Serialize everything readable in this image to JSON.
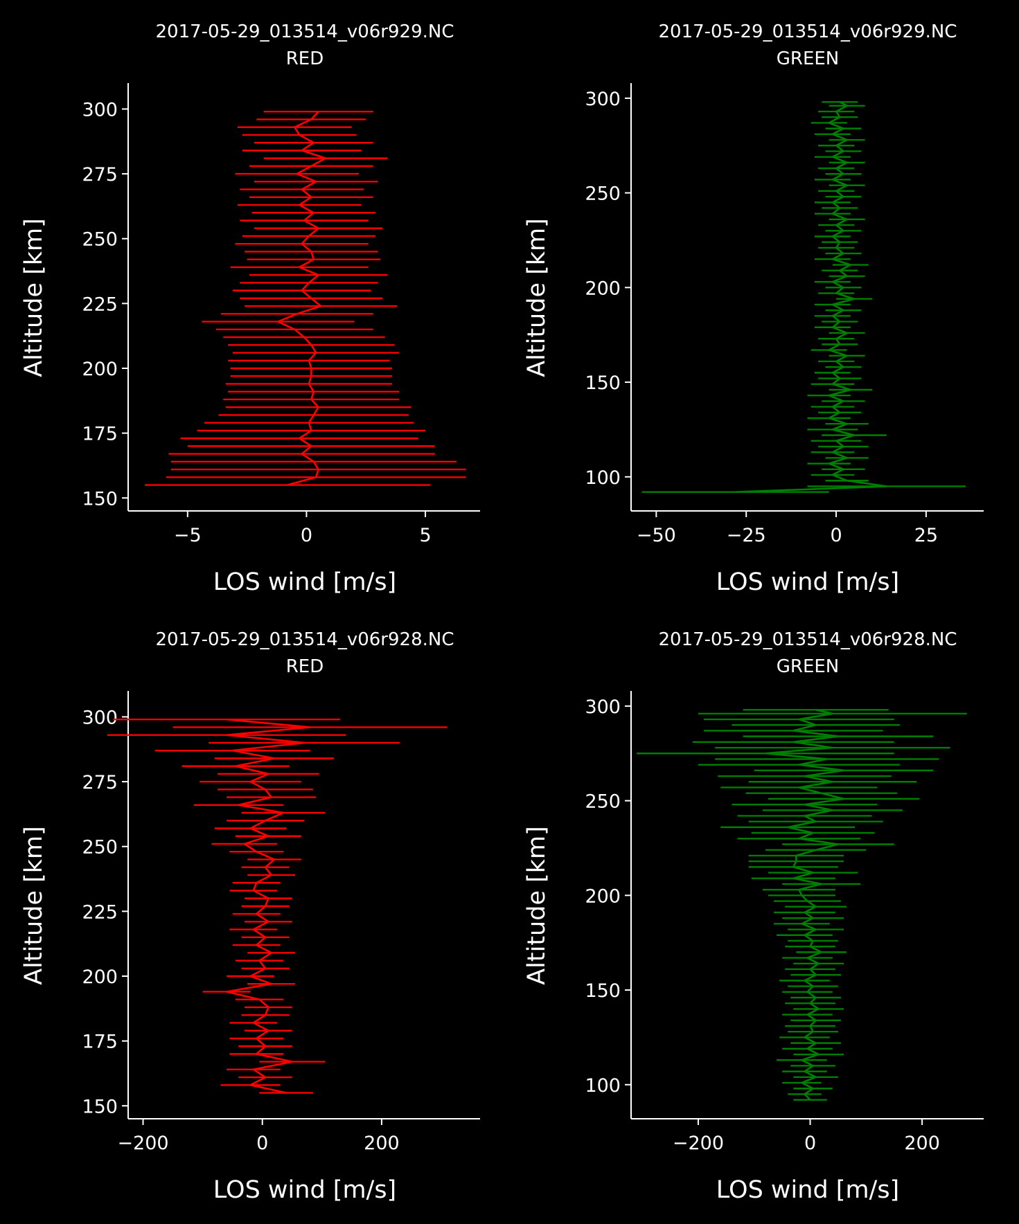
{
  "chart_data": [
    {
      "type": "errorbar",
      "title": "2017-05-29_013514_v06r929.NC",
      "subtitle": "RED",
      "xlabel": "LOS wind [m/s]",
      "ylabel": "Altitude [km]",
      "xlim": [
        -7.5,
        7.3
      ],
      "ylim": [
        145,
        310
      ],
      "xticks": [
        -5,
        0,
        5
      ],
      "yticks": [
        150,
        175,
        200,
        225,
        250,
        275,
        300
      ],
      "xtick_labels": [
        "−5",
        "0",
        "5"
      ],
      "ytick_labels": [
        "150",
        "175",
        "200",
        "225",
        "250",
        "275",
        "300"
      ],
      "color": "#ff0000",
      "series": [
        {
          "altitude": [
            155,
            158,
            161,
            164,
            167,
            170,
            173,
            176,
            179,
            182,
            185,
            188,
            191,
            194,
            197,
            200,
            203,
            206,
            209,
            212,
            215,
            218,
            221,
            224,
            227,
            230,
            233,
            236,
            239,
            242,
            245,
            248,
            251,
            254,
            257,
            260,
            263,
            266,
            269,
            272,
            275,
            278,
            281,
            284,
            287,
            290,
            293,
            296,
            299
          ],
          "wind": [
            -0.8,
            0.4,
            0.5,
            0.3,
            -0.2,
            0.2,
            -0.3,
            0.2,
            0.1,
            0.3,
            0.5,
            0.2,
            0.3,
            0.1,
            0.2,
            0.2,
            0.1,
            0.4,
            0.2,
            -0.1,
            -0.5,
            -1.2,
            -0.4,
            0.6,
            0.2,
            -0.2,
            0.1,
            0.5,
            -0.3,
            0.3,
            0.2,
            -0.2,
            0.1,
            0.5,
            -0.1,
            0.3,
            -0.3,
            0.2,
            -0.2,
            0.4,
            -0.4,
            0.2,
            0.8,
            -0.2,
            0.3,
            -0.3,
            -0.5,
            0.2,
            0.5
          ],
          "error": [
            6.0,
            6.3,
            6.2,
            6.0,
            5.6,
            5.2,
            5.0,
            4.8,
            4.4,
            4.0,
            3.9,
            3.7,
            3.6,
            3.5,
            3.4,
            3.4,
            3.4,
            3.5,
            3.5,
            3.4,
            3.3,
            3.2,
            3.2,
            3.2,
            3.0,
            2.9,
            2.9,
            2.9,
            2.9,
            2.8,
            2.8,
            2.8,
            2.8,
            2.7,
            2.7,
            2.6,
            2.6,
            2.6,
            2.6,
            2.6,
            2.6,
            2.6,
            2.6,
            2.5,
            2.5,
            2.4,
            2.4,
            2.3,
            2.3
          ]
        }
      ]
    },
    {
      "type": "errorbar",
      "title": "2017-05-29_013514_v06r929.NC",
      "subtitle": "GREEN",
      "xlabel": "LOS wind [m/s]",
      "ylabel": "Altitude [km]",
      "xlim": [
        -57,
        41
      ],
      "ylim": [
        82,
        308
      ],
      "xticks": [
        -50,
        -25,
        0,
        25
      ],
      "yticks": [
        100,
        150,
        200,
        250,
        300
      ],
      "xtick_labels": [
        "−50",
        "−25",
        "0",
        "25"
      ],
      "ytick_labels": [
        "100",
        "150",
        "200",
        "250",
        "300"
      ],
      "color": "#008000",
      "series": [
        {
          "altitude": [
            92,
            95,
            98,
            101,
            104,
            107,
            110,
            113,
            116,
            119,
            122,
            125,
            128,
            131,
            134,
            137,
            140,
            143,
            146,
            149,
            152,
            155,
            158,
            161,
            164,
            167,
            170,
            173,
            176,
            179,
            182,
            185,
            188,
            191,
            194,
            197,
            200,
            203,
            206,
            209,
            212,
            215,
            218,
            221,
            224,
            227,
            230,
            233,
            236,
            239,
            242,
            245,
            248,
            251,
            254,
            257,
            260,
            263,
            266,
            269,
            272,
            275,
            278,
            281,
            284,
            287,
            290,
            293,
            296,
            298
          ],
          "wind": [
            -28,
            14,
            3,
            -1,
            2,
            -2,
            3,
            -1,
            2,
            0,
            5,
            -1,
            3,
            -2,
            1,
            -1,
            2,
            -2,
            4,
            -1,
            1,
            -1,
            2,
            0,
            3,
            -2,
            1,
            0,
            3,
            -1,
            1,
            -1,
            2,
            -1,
            5,
            0,
            2,
            -1,
            3,
            1,
            4,
            -1,
            2,
            0,
            1,
            -1,
            2,
            0,
            3,
            -1,
            1,
            -1,
            2,
            0,
            3,
            -1,
            2,
            0,
            3,
            -1,
            2,
            0,
            3,
            -1,
            2,
            -2,
            1,
            0,
            3,
            1
          ],
          "error": [
            26,
            22,
            6,
            6,
            6,
            6,
            6,
            6,
            7,
            7,
            9,
            7,
            6,
            6,
            6,
            6,
            6,
            6,
            6,
            6,
            6,
            5,
            5,
            5,
            5,
            5,
            5,
            5,
            5,
            5,
            5,
            5,
            5,
            5,
            5,
            5,
            5,
            5,
            5,
            5,
            5,
            5,
            5,
            5,
            5,
            5,
            5,
            5,
            5,
            5,
            5,
            5,
            5,
            5,
            5,
            5,
            5,
            5,
            5,
            5,
            5,
            5,
            5,
            5,
            5,
            5,
            5,
            5,
            5,
            5
          ]
        }
      ]
    },
    {
      "type": "errorbar",
      "title": "2017-05-29_013514_v06r928.NC",
      "subtitle": "RED",
      "xlabel": "LOS wind [m/s]",
      "ylabel": "Altitude [km]",
      "xlim": [
        -225,
        365
      ],
      "ylim": [
        145,
        310
      ],
      "xticks": [
        -200,
        0,
        200
      ],
      "yticks": [
        150,
        175,
        200,
        225,
        250,
        275,
        300
      ],
      "xtick_labels": [
        "−200",
        "0",
        "200"
      ],
      "ytick_labels": [
        "150",
        "175",
        "200",
        "225",
        "250",
        "275",
        "300"
      ],
      "color": "#ff0000",
      "series": [
        {
          "altitude": [
            155,
            158,
            161,
            164,
            167,
            170,
            173,
            176,
            179,
            182,
            185,
            188,
            191,
            194,
            197,
            200,
            203,
            206,
            209,
            212,
            215,
            218,
            221,
            224,
            227,
            230,
            233,
            236,
            239,
            242,
            245,
            248,
            251,
            254,
            257,
            260,
            263,
            266,
            269,
            272,
            275,
            278,
            281,
            284,
            287,
            290,
            293,
            296,
            299
          ],
          "wind": [
            40,
            -20,
            5,
            -15,
            50,
            -10,
            5,
            -10,
            10,
            -15,
            5,
            10,
            -5,
            -60,
            15,
            -20,
            5,
            -5,
            15,
            -10,
            5,
            -15,
            10,
            -10,
            5,
            10,
            -15,
            -10,
            15,
            5,
            20,
            -10,
            -30,
            10,
            -20,
            5,
            35,
            -40,
            15,
            5,
            -20,
            10,
            -45,
            20,
            -50,
            70,
            -60,
            80,
            -60
          ],
          "error": [
            45,
            50,
            45,
            45,
            55,
            45,
            45,
            45,
            40,
            40,
            40,
            40,
            40,
            40,
            40,
            40,
            40,
            40,
            40,
            40,
            40,
            40,
            40,
            40,
            40,
            40,
            40,
            40,
            40,
            40,
            45,
            45,
            55,
            55,
            60,
            65,
            70,
            75,
            75,
            80,
            85,
            85,
            90,
            100,
            130,
            160,
            200,
            230,
            190
          ]
        }
      ]
    },
    {
      "type": "errorbar",
      "title": "2017-05-29_013514_v06r928.NC",
      "subtitle": "GREEN",
      "xlabel": "LOS wind [m/s]",
      "ylabel": "Altitude [km]",
      "xlim": [
        -320,
        310
      ],
      "ylim": [
        82,
        308
      ],
      "xticks": [
        -200,
        0,
        200
      ],
      "yticks": [
        100,
        150,
        200,
        250,
        300
      ],
      "xtick_labels": [
        "−200",
        "0",
        "200"
      ],
      "ytick_labels": [
        "100",
        "150",
        "200",
        "250",
        "300"
      ],
      "color": "#008000",
      "series": [
        {
          "altitude": [
            92,
            95,
            98,
            101,
            104,
            107,
            110,
            113,
            116,
            119,
            122,
            125,
            128,
            131,
            134,
            137,
            140,
            143,
            146,
            149,
            152,
            155,
            158,
            161,
            164,
            167,
            170,
            173,
            176,
            179,
            182,
            185,
            188,
            191,
            194,
            197,
            200,
            203,
            206,
            209,
            212,
            215,
            218,
            221,
            224,
            227,
            230,
            233,
            236,
            239,
            242,
            245,
            248,
            251,
            254,
            257,
            260,
            263,
            266,
            269,
            272,
            275,
            278,
            281,
            284,
            287,
            290,
            293,
            296,
            298
          ],
          "wind": [
            0,
            -10,
            5,
            -15,
            10,
            -10,
            5,
            -15,
            15,
            -5,
            10,
            -10,
            5,
            0,
            10,
            -5,
            15,
            0,
            10,
            -5,
            5,
            -10,
            10,
            0,
            15,
            -5,
            20,
            0,
            5,
            -10,
            10,
            -15,
            5,
            -10,
            10,
            -5,
            -15,
            -20,
            20,
            -30,
            5,
            -30,
            -25,
            -25,
            10,
            50,
            -20,
            5,
            -40,
            10,
            -10,
            40,
            -10,
            60,
            20,
            -20,
            40,
            -10,
            60,
            -20,
            30,
            -80,
            40,
            -30,
            50,
            -30,
            10,
            -20,
            40,
            10
          ],
          "error": [
            30,
            30,
            35,
            35,
            40,
            40,
            40,
            45,
            45,
            45,
            45,
            45,
            45,
            45,
            45,
            45,
            45,
            45,
            45,
            45,
            45,
            45,
            45,
            45,
            45,
            45,
            45,
            45,
            45,
            50,
            50,
            50,
            55,
            55,
            55,
            60,
            60,
            65,
            70,
            75,
            80,
            80,
            85,
            85,
            90,
            100,
            110,
            110,
            120,
            120,
            120,
            125,
            130,
            135,
            135,
            140,
            150,
            155,
            160,
            180,
            200,
            230,
            210,
            180,
            170,
            160,
            150,
            170,
            240,
            130
          ]
        }
      ]
    }
  ]
}
